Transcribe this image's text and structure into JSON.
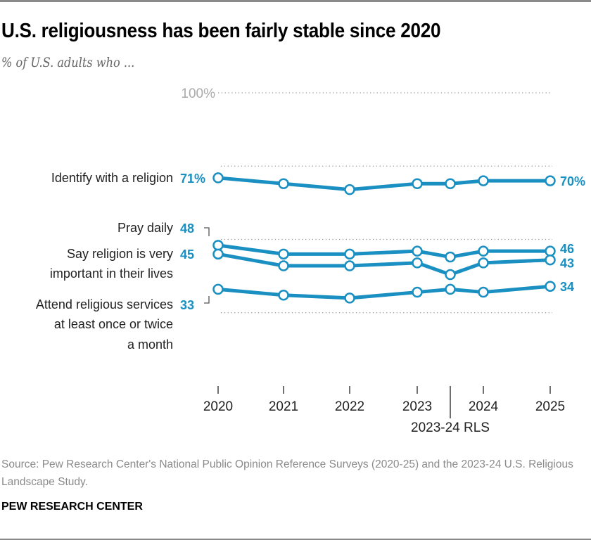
{
  "title": "U.S. religiousness has been fairly stable since 2020",
  "subtitle": "% of U.S. adults who ...",
  "source": "Source: Pew Research Center's National Public Opinion Reference Surveys (2020-25) and the 2023-24 U.S. Religious Landscape Study.",
  "brand": "PEW RESEARCH CENTER",
  "chart_data": {
    "type": "line",
    "x": [
      "2020",
      "2021",
      "2022",
      "2023",
      "2023-24 RLS",
      "2024",
      "2025"
    ],
    "x_tick_labels": [
      "2020",
      "2021",
      "2022",
      "2023",
      "2024",
      "2025"
    ],
    "x_annotation": "2023-24 RLS",
    "ylim": [
      0,
      100
    ],
    "y_tick_label": "100%",
    "gridlines": [
      25,
      50,
      75,
      100
    ],
    "color": "#1a8fc1",
    "series": [
      {
        "name": "Identify with a religion",
        "values": [
          71,
          69,
          67,
          69,
          69,
          70,
          70
        ],
        "start_label": "71%",
        "end_label": "70%"
      },
      {
        "name": "Pray daily",
        "values": [
          48,
          45,
          45,
          46,
          44,
          46,
          46
        ],
        "start_label": "48",
        "end_label": "46"
      },
      {
        "name": "Say religion is very important in their lives",
        "values": [
          45,
          41,
          41,
          42,
          38,
          42,
          43
        ],
        "start_label": "45",
        "end_label": "43"
      },
      {
        "name": "Attend religious services at least once or twice a month",
        "values": [
          33,
          31,
          30,
          32,
          33,
          32,
          34
        ],
        "start_label": "33",
        "end_label": "34"
      }
    ],
    "series_label_lines": [
      [
        "Identify with a religion"
      ],
      [
        "Pray daily"
      ],
      [
        "Say religion is very",
        "important in their lives"
      ],
      [
        "Attend religious services",
        "at least once or twice",
        "a month"
      ]
    ]
  }
}
